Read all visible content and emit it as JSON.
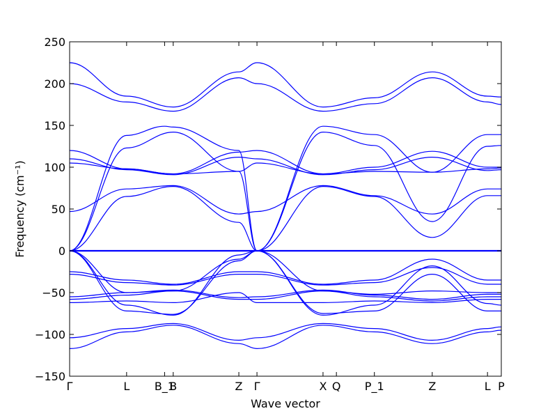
{
  "chart_data": {
    "type": "line",
    "title": "",
    "xlabel": "Wave vector",
    "ylabel": "Frequency (cm⁻¹)",
    "ylim": [
      -150,
      250
    ],
    "yticks": [
      -150,
      -100,
      -50,
      0,
      50,
      100,
      150,
      200,
      250
    ],
    "ytick_labels": [
      "−150",
      "−100",
      "−50",
      "0",
      "50",
      "100",
      "150",
      "200",
      "250"
    ],
    "grid": false,
    "legend": "none",
    "color": "#0000ff",
    "k_points": [
      {
        "label": "Γ",
        "x": 0
      },
      {
        "label": "L",
        "x": 0.132
      },
      {
        "label": "B_1",
        "x": 0.22
      },
      {
        "label": "B",
        "x": 0.24
      },
      {
        "label": "Z",
        "x": 0.392
      },
      {
        "label": "Γ",
        "x": 0.434
      },
      {
        "label": "X",
        "x": 0.587
      },
      {
        "label": "Q",
        "x": 0.618
      },
      {
        "label": "P_1",
        "x": 0.706
      },
      {
        "label": "Z",
        "x": 0.84
      },
      {
        "label": "L",
        "x": 0.968
      },
      {
        "label": "P",
        "x": 1.0
      }
    ],
    "series": [
      {
        "x": [
          0,
          0.132,
          0.24,
          0.392,
          0.434,
          0.587,
          0.706,
          0.84,
          0.968,
          1.0
        ],
        "values": [
          225,
          185,
          172,
          214,
          225,
          172,
          183,
          214,
          185,
          184
        ]
      },
      {
        "x": [
          0,
          0.132,
          0.24,
          0.392,
          0.434,
          0.587,
          0.706,
          0.84,
          0.968,
          1.0
        ],
        "values": [
          200,
          178,
          167,
          207,
          200,
          167,
          176,
          207,
          178,
          175
        ]
      },
      {
        "x": [
          0,
          0.132,
          0.22,
          0.24,
          0.392,
          0.434,
          0.587,
          0.706,
          0.84,
          0.968,
          1.0
        ],
        "values": [
          0,
          138,
          149,
          148,
          120,
          0,
          149,
          139,
          94,
          139,
          139
        ]
      },
      {
        "x": [
          0,
          0.132,
          0.24,
          0.392,
          0.434,
          0.587,
          0.706,
          0.84,
          0.968,
          1.0
        ],
        "values": [
          0,
          123,
          142,
          95,
          0,
          142,
          126,
          35,
          125,
          126
        ]
      },
      {
        "x": [
          0,
          0.132,
          0.24,
          0.392,
          0.434,
          0.587,
          0.706,
          0.84,
          0.968,
          1.0
        ],
        "values": [
          120,
          98,
          92,
          118,
          120,
          92,
          100,
          119,
          100,
          100
        ]
      },
      {
        "x": [
          0,
          0.132,
          0.24,
          0.392,
          0.434,
          0.587,
          0.706,
          0.84,
          0.968,
          1.0
        ],
        "values": [
          110,
          97,
          91,
          112,
          110,
          91,
          97,
          112,
          96,
          97
        ]
      },
      {
        "x": [
          0,
          0.132,
          0.24,
          0.392,
          0.434,
          0.587,
          0.706,
          0.84,
          0.968,
          1.0
        ],
        "values": [
          105,
          98,
          92,
          95,
          105,
          92,
          95,
          94,
          98,
          99
        ]
      },
      {
        "x": [
          0,
          0.132,
          0.24,
          0.392,
          0.434,
          0.587,
          0.706,
          0.84,
          0.968,
          1.0
        ],
        "values": [
          47,
          74,
          78,
          44,
          47,
          78,
          66,
          44,
          74,
          74
        ]
      },
      {
        "x": [
          0,
          0.132,
          0.24,
          0.392,
          0.434,
          0.587,
          0.706,
          0.84,
          0.968,
          1.0
        ],
        "values": [
          0,
          65,
          77,
          34,
          0,
          77,
          65,
          16,
          66,
          66
        ]
      },
      {
        "x": [
          0,
          1.0
        ],
        "values": [
          0,
          0
        ]
      },
      {
        "x": [
          0,
          0.132,
          0.24,
          0.392,
          0.434,
          0.587,
          0.706,
          0.84,
          0.968,
          1.0
        ],
        "values": [
          -25,
          -35,
          -40,
          -25,
          -25,
          -40,
          -35,
          -10,
          -35,
          -35
        ]
      },
      {
        "x": [
          0,
          0.132,
          0.24,
          0.392,
          0.434,
          0.587,
          0.706,
          0.84,
          0.968,
          1.0
        ],
        "values": [
          -28,
          -38,
          -41,
          -28,
          -28,
          -41,
          -38,
          -20,
          -40,
          -40
        ]
      },
      {
        "x": [
          0,
          0.132,
          0.24,
          0.392,
          0.434,
          0.587,
          0.706,
          0.84,
          0.968,
          1.0
        ],
        "values": [
          0,
          -50,
          -48,
          -10,
          0,
          -48,
          -52,
          -48,
          -50,
          -50
        ]
      },
      {
        "x": [
          0,
          0.132,
          0.24,
          0.392,
          0.434,
          0.587,
          0.706,
          0.84,
          0.968,
          1.0
        ],
        "values": [
          -55,
          -50,
          -47,
          -56,
          -55,
          -47,
          -53,
          -58,
          -52,
          -52
        ]
      },
      {
        "x": [
          0,
          0.132,
          0.24,
          0.392,
          0.434,
          0.587,
          0.706,
          0.84,
          0.968,
          1.0
        ],
        "values": [
          -58,
          -53,
          -48,
          -58,
          -58,
          -48,
          -55,
          -60,
          -55,
          -55
        ]
      },
      {
        "x": [
          0,
          0.132,
          0.24,
          0.392,
          0.434,
          0.587,
          0.706,
          0.84,
          0.968,
          1.0
        ],
        "values": [
          -62,
          -60,
          -62,
          -50,
          -62,
          -62,
          -60,
          -62,
          -58,
          -58
        ]
      },
      {
        "x": [
          0,
          0.132,
          0.24,
          0.392,
          0.434,
          0.587,
          0.706,
          0.84,
          0.968,
          1.0
        ],
        "values": [
          0,
          -65,
          -77,
          -5,
          0,
          -77,
          -65,
          -18,
          -63,
          -65
        ]
      },
      {
        "x": [
          0,
          0.132,
          0.24,
          0.392,
          0.434,
          0.587,
          0.706,
          0.84,
          0.968,
          1.0
        ],
        "values": [
          0,
          -72,
          -76,
          -12,
          0,
          -75,
          -72,
          -28,
          -72,
          -72
        ]
      },
      {
        "x": [
          0,
          0.132,
          0.24,
          0.392,
          0.434,
          0.587,
          0.706,
          0.84,
          0.968,
          1.0
        ],
        "values": [
          -104,
          -93,
          -87,
          -107,
          -104,
          -87,
          -93,
          -107,
          -93,
          -91
        ]
      },
      {
        "x": [
          0,
          0.132,
          0.24,
          0.392,
          0.434,
          0.587,
          0.706,
          0.84,
          0.968,
          1.0
        ],
        "values": [
          -117,
          -97,
          -89,
          -111,
          -117,
          -89,
          -97,
          -111,
          -97,
          -95
        ]
      }
    ]
  }
}
